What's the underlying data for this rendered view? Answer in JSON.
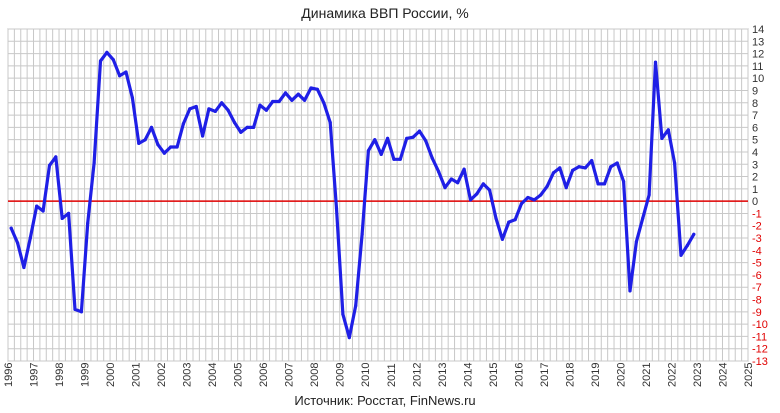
{
  "chart_data": {
    "type": "line",
    "title": "Динамика ВВП России, %",
    "source": "Источник: Росстат, FinNews.ru",
    "xlim": [
      1996,
      2025
    ],
    "ylim": [
      -13,
      14
    ],
    "grid": true,
    "x_tick_labels": [
      "1996",
      "1997",
      "1998",
      "1999",
      "2000",
      "2001",
      "2002",
      "2003",
      "2004",
      "2005",
      "2006",
      "2007",
      "2008",
      "2009",
      "2010",
      "2011",
      "2012",
      "2013",
      "2014",
      "2015",
      "2016",
      "2017",
      "2018",
      "2019",
      "2020",
      "2021",
      "2022",
      "2023",
      "2024",
      "2025"
    ],
    "y_tick_labels": [
      "14",
      "13",
      "12",
      "11",
      "10",
      "9",
      "8",
      "7",
      "6",
      "5",
      "4",
      "3",
      "2",
      "1",
      "0",
      "-1",
      "-2",
      "-3",
      "-4",
      "-5",
      "-6",
      "-7",
      "-8",
      "-9",
      "-10",
      "-11",
      "-12",
      "-13"
    ],
    "colors": {
      "series": "#1f1fe6",
      "zero_line": "#e00000",
      "negative_ticks": "#e00000",
      "grid": "#c8c8c8"
    },
    "series": [
      {
        "values": [
          [
            1996.125,
            -2.2
          ],
          [
            1996.375,
            -3.4
          ],
          [
            1996.625,
            -5.4
          ],
          [
            1996.875,
            -3.0
          ],
          [
            1997.125,
            -0.4
          ],
          [
            1997.375,
            -0.8
          ],
          [
            1997.625,
            2.9
          ],
          [
            1997.875,
            3.6
          ],
          [
            1998.125,
            -1.4
          ],
          [
            1998.375,
            -1.0
          ],
          [
            1998.625,
            -8.8
          ],
          [
            1998.875,
            -9.0
          ],
          [
            1999.125,
            -1.8
          ],
          [
            1999.375,
            3.1
          ],
          [
            1999.625,
            11.4
          ],
          [
            1999.875,
            12.1
          ],
          [
            2000.125,
            11.5
          ],
          [
            2000.375,
            10.2
          ],
          [
            2000.625,
            10.5
          ],
          [
            2000.875,
            8.4
          ],
          [
            2001.125,
            4.7
          ],
          [
            2001.375,
            5.0
          ],
          [
            2001.625,
            6.0
          ],
          [
            2001.875,
            4.6
          ],
          [
            2002.125,
            3.9
          ],
          [
            2002.375,
            4.4
          ],
          [
            2002.625,
            4.4
          ],
          [
            2002.875,
            6.3
          ],
          [
            2003.125,
            7.5
          ],
          [
            2003.375,
            7.7
          ],
          [
            2003.625,
            5.3
          ],
          [
            2003.875,
            7.5
          ],
          [
            2004.125,
            7.3
          ],
          [
            2004.375,
            8.0
          ],
          [
            2004.625,
            7.4
          ],
          [
            2004.875,
            6.4
          ],
          [
            2005.125,
            5.6
          ],
          [
            2005.375,
            6.0
          ],
          [
            2005.625,
            6.0
          ],
          [
            2005.875,
            7.8
          ],
          [
            2006.125,
            7.4
          ],
          [
            2006.375,
            8.1
          ],
          [
            2006.625,
            8.1
          ],
          [
            2006.875,
            8.8
          ],
          [
            2007.125,
            8.2
          ],
          [
            2007.375,
            8.7
          ],
          [
            2007.625,
            8.2
          ],
          [
            2007.875,
            9.2
          ],
          [
            2008.125,
            9.1
          ],
          [
            2008.375,
            8.0
          ],
          [
            2008.625,
            6.4
          ],
          [
            2008.875,
            -0.6
          ],
          [
            2009.125,
            -9.2
          ],
          [
            2009.375,
            -11.1
          ],
          [
            2009.625,
            -8.5
          ],
          [
            2009.875,
            -2.7
          ],
          [
            2010.125,
            4.1
          ],
          [
            2010.375,
            5.0
          ],
          [
            2010.625,
            3.8
          ],
          [
            2010.875,
            5.1
          ],
          [
            2011.125,
            3.4
          ],
          [
            2011.375,
            3.4
          ],
          [
            2011.625,
            5.1
          ],
          [
            2011.875,
            5.2
          ],
          [
            2012.125,
            5.7
          ],
          [
            2012.375,
            4.9
          ],
          [
            2012.625,
            3.5
          ],
          [
            2012.875,
            2.4
          ],
          [
            2013.125,
            1.1
          ],
          [
            2013.375,
            1.8
          ],
          [
            2013.625,
            1.5
          ],
          [
            2013.875,
            2.6
          ],
          [
            2014.125,
            0.1
          ],
          [
            2014.375,
            0.6
          ],
          [
            2014.625,
            1.4
          ],
          [
            2014.875,
            0.9
          ],
          [
            2015.125,
            -1.4
          ],
          [
            2015.375,
            -3.1
          ],
          [
            2015.625,
            -1.7
          ],
          [
            2015.875,
            -1.5
          ],
          [
            2016.125,
            -0.2
          ],
          [
            2016.375,
            0.3
          ],
          [
            2016.625,
            0.1
          ],
          [
            2016.875,
            0.5
          ],
          [
            2017.125,
            1.2
          ],
          [
            2017.375,
            2.3
          ],
          [
            2017.625,
            2.7
          ],
          [
            2017.875,
            1.1
          ],
          [
            2018.125,
            2.5
          ],
          [
            2018.375,
            2.8
          ],
          [
            2018.625,
            2.7
          ],
          [
            2018.875,
            3.3
          ],
          [
            2019.125,
            1.4
          ],
          [
            2019.375,
            1.4
          ],
          [
            2019.625,
            2.8
          ],
          [
            2019.875,
            3.1
          ],
          [
            2020.125,
            1.6
          ],
          [
            2020.375,
            -7.3
          ],
          [
            2020.625,
            -3.3
          ],
          [
            2020.875,
            -1.4
          ],
          [
            2021.125,
            0.5
          ],
          [
            2021.375,
            11.3
          ],
          [
            2021.625,
            5.1
          ],
          [
            2021.875,
            5.8
          ],
          [
            2022.125,
            3.1
          ],
          [
            2022.375,
            -4.4
          ],
          [
            2022.625,
            -3.6
          ],
          [
            2022.875,
            -2.7
          ]
        ]
      }
    ]
  }
}
